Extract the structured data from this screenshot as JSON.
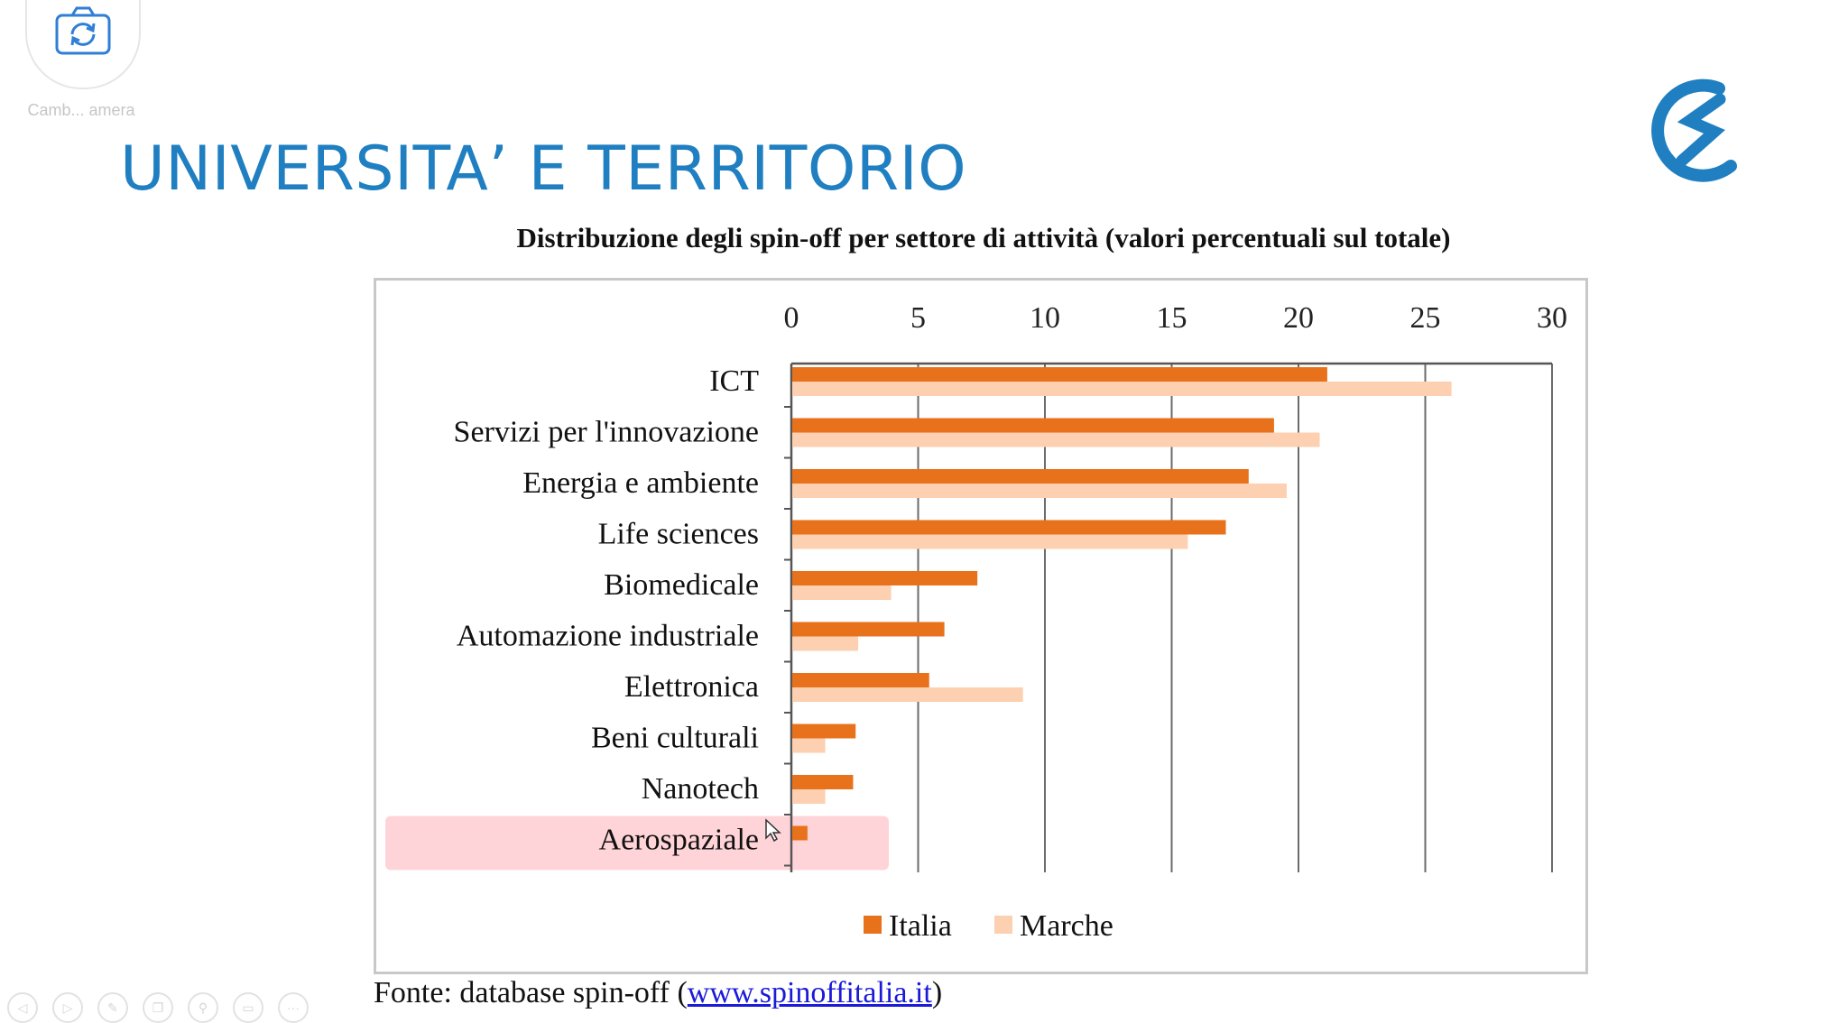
{
  "camera": {
    "label": "Camb... amera",
    "icon": "camera-switch-icon"
  },
  "slide_title": "UNIVERSITA’ E TERRITORIO",
  "logo_icon": "brand-s-logo-icon",
  "source": {
    "prefix": "Fonte: database spin-off (",
    "link": "www.spinoffitalia.it",
    "suffix": ")"
  },
  "highlight": {
    "category": "Aerospaziale",
    "color": "#ffd4d8"
  },
  "toolbar": [
    "previous-icon",
    "next-icon",
    "pen-icon",
    "copy-icon",
    "zoom-icon",
    "screen-icon",
    "more-icon"
  ],
  "chart_data": {
    "type": "bar",
    "orientation": "horizontal",
    "title": "Distribuzione degli spin-off per settore di attività (valori percentuali sul totale)",
    "categories": [
      "ICT",
      "Servizi per l'innovazione",
      "Energia e ambiente",
      "Life sciences",
      "Biomedicale",
      "Automazione industriale",
      "Elettronica",
      "Beni culturali",
      "Nanotech",
      "Aerospaziale"
    ],
    "series": [
      {
        "name": "Italia",
        "color": "#e8711c",
        "values": [
          21.1,
          19.0,
          18.0,
          17.1,
          7.3,
          6.0,
          5.4,
          2.5,
          2.4,
          0.6
        ]
      },
      {
        "name": "Marche",
        "color": "#fcd0b0",
        "values": [
          26.0,
          20.8,
          19.5,
          15.6,
          3.9,
          2.6,
          9.1,
          1.3,
          1.3,
          0.0
        ]
      }
    ],
    "xlim": [
      0,
      30
    ],
    "xticks": [
      0,
      5,
      10,
      15,
      20,
      25,
      30
    ],
    "grid": true,
    "axis_position": "top",
    "legend": "bottom"
  }
}
